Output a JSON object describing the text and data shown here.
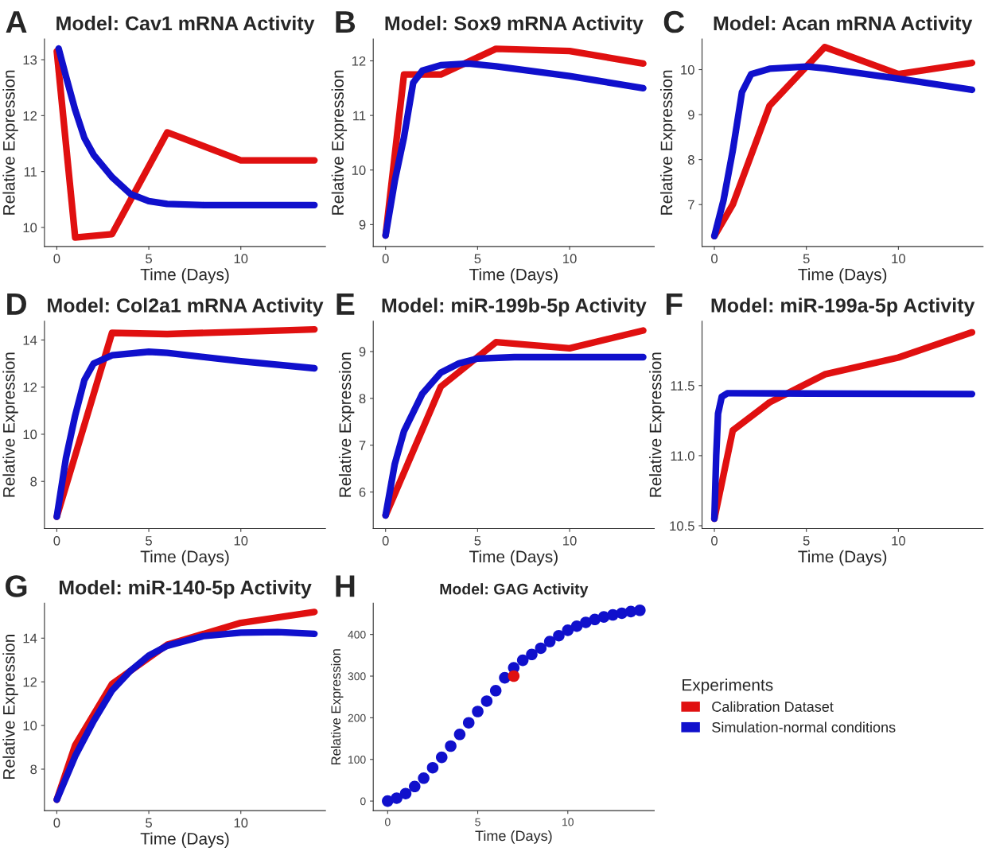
{
  "chart_data": [
    {
      "type": "line",
      "title": "Model: Cav1 mRNA Activity",
      "xlabel": "Time (Days)",
      "ylabel": "Relative Expression",
      "annotations": [
        "A"
      ],
      "xlim": [
        -0.67,
        14.6
      ],
      "xticks": [
        0,
        5,
        10
      ],
      "ylim": [
        9.66,
        13.37
      ],
      "yticks": [
        10,
        11,
        12,
        13
      ],
      "marker": "none",
      "series": [
        {
          "color": "#e01010",
          "x": [
            0,
            1,
            3,
            6,
            10,
            14
          ],
          "values": [
            13.15,
            9.82,
            9.88,
            11.7,
            11.2,
            11.2
          ]
        },
        {
          "color": "#1010cc",
          "x": [
            0.1,
            0.5,
            1,
            1.5,
            2,
            3,
            4,
            5,
            6,
            8,
            10,
            14
          ],
          "values": [
            13.2,
            12.7,
            12.1,
            11.6,
            11.3,
            10.9,
            10.6,
            10.47,
            10.42,
            10.4,
            10.4,
            10.4
          ]
        }
      ]
    },
    {
      "type": "line",
      "title": "Model: Sox9 mRNA Activity",
      "xlabel": "Time (Days)",
      "ylabel": "Relative Expression",
      "annotations": [
        "B"
      ],
      "xlim": [
        -0.67,
        14.6
      ],
      "xticks": [
        0,
        5,
        10
      ],
      "ylim": [
        8.6,
        12.4
      ],
      "yticks": [
        9,
        10,
        11,
        12
      ],
      "marker": "none",
      "series": [
        {
          "color": "#e01010",
          "x": [
            0,
            1,
            3,
            6,
            10,
            14
          ],
          "values": [
            8.8,
            11.75,
            11.75,
            12.22,
            12.18,
            11.95
          ]
        },
        {
          "color": "#1010cc",
          "x": [
            0,
            0.5,
            1,
            1.5,
            2,
            3,
            4.5,
            6,
            10,
            14
          ],
          "values": [
            8.8,
            9.8,
            10.6,
            11.6,
            11.82,
            11.92,
            11.95,
            11.9,
            11.72,
            11.5
          ]
        }
      ]
    },
    {
      "type": "line",
      "title": "Model: Acan mRNA Activity",
      "xlabel": "Time (Days)",
      "ylabel": "Relative Expression",
      "annotations": [
        "C"
      ],
      "xlim": [
        -0.67,
        14.6
      ],
      "xticks": [
        0,
        5,
        10
      ],
      "ylim": [
        6.07,
        10.68
      ],
      "yticks": [
        7,
        8,
        9,
        10
      ],
      "marker": "none",
      "series": [
        {
          "color": "#e01010",
          "x": [
            0,
            1,
            3,
            6,
            10,
            14
          ],
          "values": [
            6.3,
            7.0,
            9.2,
            10.5,
            9.9,
            10.15
          ]
        },
        {
          "color": "#1010cc",
          "x": [
            0,
            0.5,
            1,
            1.5,
            2,
            3,
            5,
            6,
            10,
            14
          ],
          "values": [
            6.3,
            7.1,
            8.2,
            9.5,
            9.9,
            10.02,
            10.07,
            10.03,
            9.8,
            9.55
          ]
        }
      ]
    },
    {
      "type": "line",
      "title": "Model: Col2a1 mRNA Activity",
      "xlabel": "Time (Days)",
      "ylabel": "Relative Expression",
      "annotations": [
        "D"
      ],
      "xlim": [
        -0.67,
        14.6
      ],
      "xticks": [
        0,
        5,
        10
      ],
      "ylim": [
        6.0,
        14.8
      ],
      "yticks": [
        8,
        10,
        12,
        14
      ],
      "marker": "none",
      "series": [
        {
          "color": "#e01010",
          "x": [
            0,
            3,
            6,
            10,
            14
          ],
          "values": [
            6.5,
            14.3,
            14.25,
            14.35,
            14.45
          ]
        },
        {
          "color": "#1010cc",
          "x": [
            0,
            0.5,
            1,
            1.5,
            2,
            3,
            5,
            6,
            10,
            14
          ],
          "values": [
            6.5,
            9.0,
            10.8,
            12.3,
            13.0,
            13.35,
            13.5,
            13.45,
            13.1,
            12.8
          ]
        }
      ]
    },
    {
      "type": "line",
      "title": "Model: miR-199b-5p Activity",
      "xlabel": "Time (Days)",
      "ylabel": "Relative Expression",
      "annotations": [
        "E"
      ],
      "xlim": [
        -0.67,
        14.6
      ],
      "xticks": [
        0,
        5,
        10
      ],
      "ylim": [
        5.22,
        9.65
      ],
      "yticks": [
        6,
        7,
        8,
        9
      ],
      "marker": "none",
      "series": [
        {
          "color": "#e01010",
          "x": [
            0,
            3,
            6,
            10,
            14
          ],
          "values": [
            5.5,
            8.25,
            9.2,
            9.07,
            9.45
          ]
        },
        {
          "color": "#1010cc",
          "x": [
            0,
            0.5,
            1,
            2,
            3,
            4,
            5,
            7,
            14
          ],
          "values": [
            5.5,
            6.6,
            7.3,
            8.1,
            8.55,
            8.75,
            8.85,
            8.88,
            8.88
          ]
        }
      ]
    },
    {
      "type": "line",
      "title": "Model: miR-199a-5p Activity",
      "xlabel": "Time (Days)",
      "ylabel": "Relative Expression",
      "annotations": [
        "F"
      ],
      "xlim": [
        -0.67,
        14.6
      ],
      "xticks": [
        0,
        5,
        10
      ],
      "ylim": [
        10.48,
        11.96
      ],
      "yticks": [
        {
          "value": 10.5,
          "label": "10.5"
        },
        {
          "value": 11.0,
          "label": "11.0"
        },
        {
          "value": 11.5,
          "label": "11.5"
        }
      ],
      "marker": "none",
      "series": [
        {
          "color": "#e01010",
          "x": [
            0,
            1,
            3,
            6,
            10,
            14
          ],
          "values": [
            10.55,
            11.18,
            11.38,
            11.58,
            11.7,
            11.88
          ]
        },
        {
          "color": "#1010cc",
          "x": [
            0,
            0.1,
            0.2,
            0.4,
            0.7,
            1,
            14
          ],
          "values": [
            10.55,
            11.0,
            11.3,
            11.42,
            11.445,
            11.445,
            11.44
          ]
        }
      ]
    },
    {
      "type": "line",
      "title": "Model: miR-140-5p Activity",
      "xlabel": "Time (Days)",
      "ylabel": "Relative Expression",
      "annotations": [
        "G"
      ],
      "xlim": [
        -0.67,
        14.6
      ],
      "xticks": [
        0,
        5,
        10
      ],
      "ylim": [
        6.1,
        15.6
      ],
      "yticks": [
        8,
        10,
        12,
        14
      ],
      "marker": "none",
      "series": [
        {
          "color": "#e01010",
          "x": [
            0,
            1,
            3,
            6,
            10,
            14
          ],
          "values": [
            6.6,
            9.1,
            11.9,
            13.7,
            14.7,
            15.2
          ]
        },
        {
          "color": "#1010cc",
          "x": [
            0,
            1,
            2,
            3,
            4,
            5,
            6,
            8,
            10,
            12,
            14
          ],
          "values": [
            6.6,
            8.6,
            10.2,
            11.6,
            12.5,
            13.2,
            13.65,
            14.1,
            14.25,
            14.28,
            14.2
          ]
        }
      ]
    },
    {
      "type": "scatter",
      "title": "Model: GAG Activity",
      "xlabel": "Time (Days)",
      "ylabel": "Relative Expression",
      "annotations": [
        "H"
      ],
      "xlim": [
        -0.8,
        14.8
      ],
      "xticks": [
        0,
        5,
        10
      ],
      "ylim": [
        -23,
        475
      ],
      "yticks": [
        0,
        100,
        200,
        300,
        400
      ],
      "marker": "circle",
      "legend": "right",
      "legend_title": "Experiments",
      "series": [
        {
          "name": "Calibration Dataset",
          "color": "#e01010",
          "x": [
            7
          ],
          "values": [
            300
          ]
        },
        {
          "name": "Simulation-normal conditions",
          "color": "#1010cc",
          "x": [
            0,
            0.5,
            1,
            1.5,
            2,
            2.5,
            3,
            3.5,
            4,
            4.5,
            5,
            5.5,
            6,
            6.5,
            7,
            7.5,
            8,
            8.5,
            9,
            9.5,
            10,
            10.5,
            11,
            11.5,
            12,
            12.5,
            13,
            13.5,
            14
          ],
          "values": [
            0,
            7,
            18,
            35,
            55,
            80,
            105,
            132,
            160,
            188,
            215,
            240,
            265,
            296,
            320,
            338,
            352,
            367,
            383,
            397,
            410,
            420,
            429,
            436,
            442,
            447,
            451,
            455,
            458
          ]
        }
      ]
    }
  ]
}
